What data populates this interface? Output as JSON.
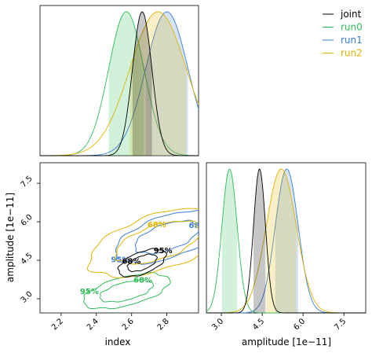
{
  "chart_data": {
    "type": "corner",
    "series": [
      {
        "name": "joint",
        "color": "#000000",
        "index": {
          "mean": 2.66,
          "sigma": 0.055
        },
        "amplitude": {
          "mean": 4.4,
          "sigma": 0.22
        }
      },
      {
        "name": "run0",
        "color": "#2ebd59",
        "index": {
          "mean": 2.57,
          "sigma": 0.1
        },
        "amplitude": {
          "mean": 3.3,
          "sigma": 0.28
        }
      },
      {
        "name": "run1",
        "color": "#3a7fd5",
        "index": {
          "mean": 2.8,
          "sigma": 0.12
        },
        "amplitude": {
          "mean": 5.4,
          "sigma": 0.42
        }
      },
      {
        "name": "run2",
        "color": "#e0b400",
        "index": {
          "mean": 2.75,
          "sigma": 0.16
        },
        "amplitude": {
          "mean": 5.2,
          "sigma": 0.55
        }
      }
    ],
    "xlabel_index": "index",
    "xlabel_amplitude": "amplitude [1e−11]",
    "ylabel_amplitude": "amplitude [1e−11]",
    "index_range": [
      2.08,
      2.98
    ],
    "amplitude_range": [
      2.45,
      8.3
    ],
    "index_ticks": [
      "2.2",
      "2.4",
      "2.6",
      "2.8"
    ],
    "amplitude_ticks": [
      "3.0",
      "4.5",
      "6.0",
      "7.5"
    ],
    "contour_labels": [
      "68%",
      "95%"
    ],
    "grid": false,
    "legend_position": "top-right"
  }
}
